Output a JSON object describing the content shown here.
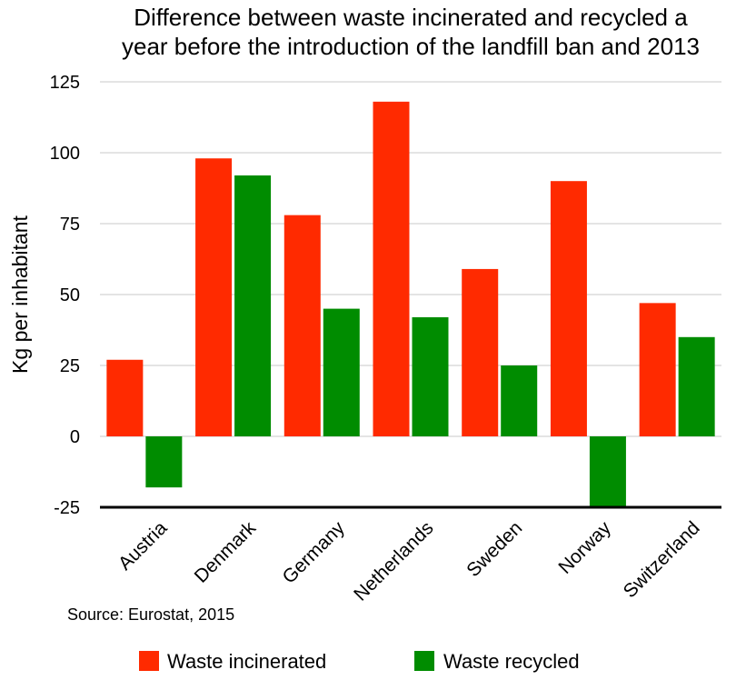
{
  "chart_data": {
    "type": "bar",
    "title": [
      "Difference between waste incinerated and recycled a",
      "year before the introduction of the landfill ban and 2013"
    ],
    "ylabel": "Kg per inhabitant",
    "xlabel": "",
    "ylim": [
      -25,
      125
    ],
    "yticks": [
      125,
      100,
      75,
      50,
      25,
      0,
      -25
    ],
    "grid": true,
    "legend_position": "bottom",
    "categories": [
      "Austria",
      "Denmark",
      "Germany",
      "Netherlands",
      "Sweden",
      "Norway",
      "Switzerland"
    ],
    "series": [
      {
        "name": "Waste incinerated",
        "color": "#ff2a00",
        "values": [
          27,
          98,
          78,
          118,
          59,
          90,
          47
        ]
      },
      {
        "name": "Waste recycled",
        "color": "#008c00",
        "values": [
          -18,
          92,
          45,
          42,
          25,
          -25,
          35
        ]
      }
    ],
    "annotations": [
      "Source: Eurostat, 2015"
    ]
  }
}
